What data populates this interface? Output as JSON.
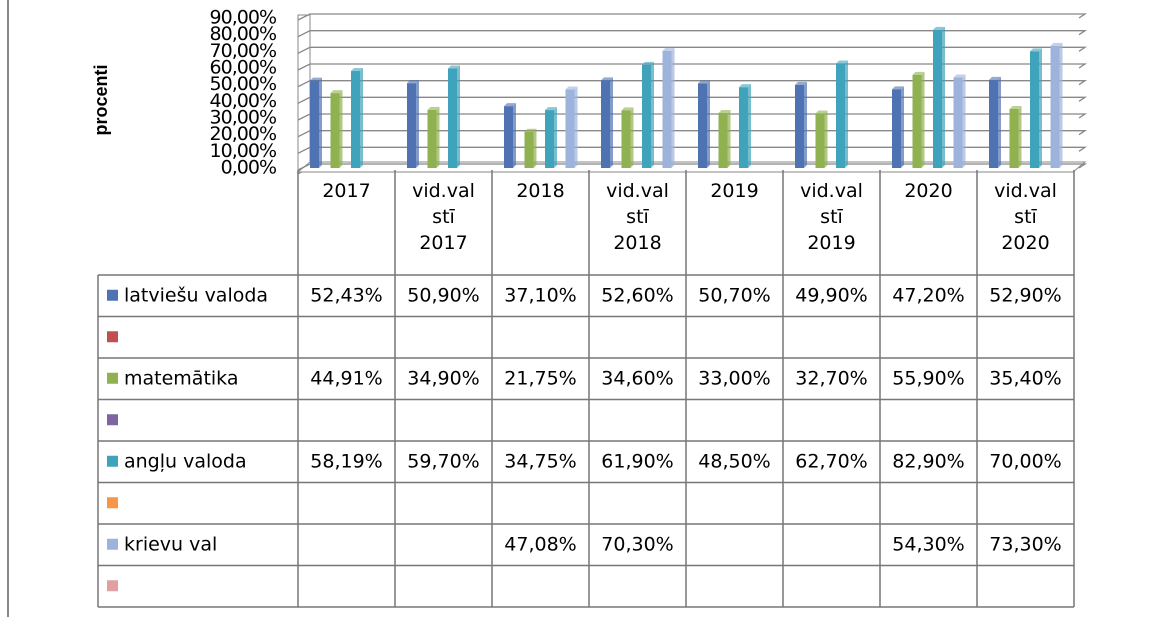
{
  "chart_data": {
    "type": "bar",
    "y_label": "procenti",
    "categories": [
      "2017",
      "vid.val stī 2017",
      "2018",
      "vid.val stī 2018",
      "2019",
      "vid.val stī 2019",
      "2020",
      "vid.val stī 2020"
    ],
    "ylim": [
      0,
      90
    ],
    "yticks": [
      {
        "value": 0,
        "label": "0,00%"
      },
      {
        "value": 10,
        "label": "10,00%"
      },
      {
        "value": 20,
        "label": "20,00%"
      },
      {
        "value": 30,
        "label": "30,00%"
      },
      {
        "value": 40,
        "label": "40,00%"
      },
      {
        "value": 50,
        "label": "50,00%"
      },
      {
        "value": 60,
        "label": "60,00%"
      },
      {
        "value": 70,
        "label": "70,00%"
      },
      {
        "value": 80,
        "label": "80,00%"
      },
      {
        "value": 90,
        "label": "90,00%"
      }
    ],
    "grid": true,
    "series": [
      {
        "name": "latviešu valoda",
        "color": "#4f72b3",
        "values": [
          52.43,
          50.9,
          37.1,
          52.6,
          50.7,
          49.9,
          47.2,
          52.9
        ],
        "value_labels": [
          "52,43%",
          "50,90%",
          "37,10%",
          "52,60%",
          "50,70%",
          "49,90%",
          "47,20%",
          "52,90%"
        ]
      },
      {
        "color": "#c0504d",
        "values": [
          null,
          null,
          null,
          null,
          null,
          null,
          null,
          null
        ]
      },
      {
        "name": "matemātika",
        "color": "#8fb150",
        "values": [
          44.91,
          34.9,
          21.75,
          34.6,
          33.0,
          32.7,
          55.9,
          35.4
        ],
        "value_labels": [
          "44,91%",
          "34,90%",
          "21,75%",
          "34,60%",
          "33,00%",
          "32,70%",
          "55,90%",
          "35,40%"
        ]
      },
      {
        "color": "#8064a2",
        "values": [
          null,
          null,
          null,
          null,
          null,
          null,
          null,
          null
        ]
      },
      {
        "name": "angļu valoda",
        "color": "#3fa3bb",
        "values": [
          58.19,
          59.7,
          34.75,
          61.9,
          48.5,
          62.7,
          82.9,
          70.0
        ],
        "value_labels": [
          "58,19%",
          "59,70%",
          "34,75%",
          "61,90%",
          "48,50%",
          "62,70%",
          "82,90%",
          "70,00%"
        ]
      },
      {
        "color": "#f79646",
        "values": [
          null,
          null,
          null,
          null,
          null,
          null,
          null,
          null
        ]
      },
      {
        "name": "krievu val",
        "color": "#9db3dc",
        "values": [
          null,
          null,
          47.08,
          70.3,
          null,
          null,
          54.3,
          73.3
        ],
        "value_labels": [
          null,
          null,
          "47,08%",
          "70,30%",
          null,
          null,
          "54,30%",
          "73,30%"
        ]
      },
      {
        "color": "#e0a0a0",
        "values": [
          null,
          null,
          null,
          null,
          null,
          null,
          null,
          null
        ]
      }
    ]
  }
}
